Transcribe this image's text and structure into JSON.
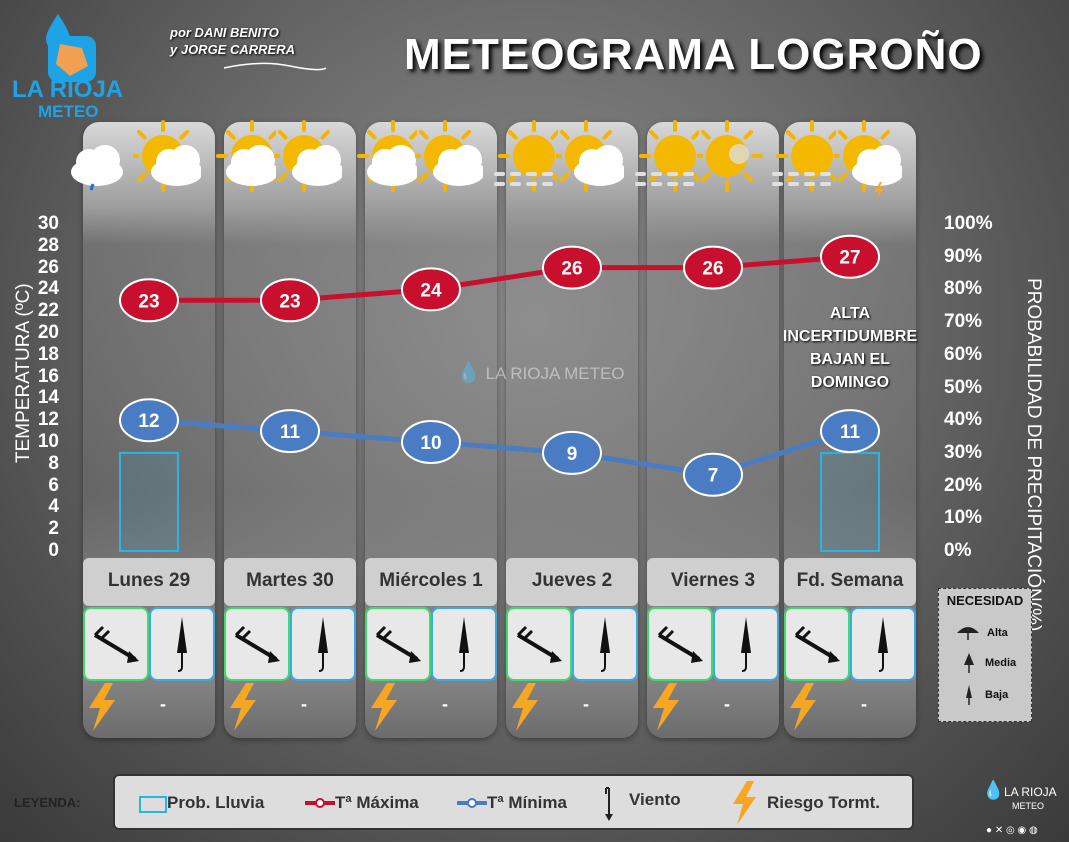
{
  "brand": {
    "name": "LA RIOJA",
    "sub": "METEO"
  },
  "credit": {
    "line1": "por DANI BENITO",
    "line2": "y JORGE CARRERA"
  },
  "title": "METEOGRAMA LOGROÑO",
  "watermark": "LA RIOJA METEO",
  "note": [
    "ALTA",
    "INCERTIDUMBRE",
    "BAJAN EL",
    "DOMINGO"
  ],
  "colors": {
    "tmax": "#c8102e",
    "tmin": "#4a7cc3",
    "rain": "#2ab4e6",
    "storm": "#f5a623",
    "wind_box": "#3ddc6a",
    "umbrella_box": "#3aa9e8"
  },
  "chart_data": {
    "type": "line",
    "categories": [
      "Lunes 29",
      "Martes 30",
      "Miércoles 1",
      "Jueves 2",
      "Viernes 3",
      "Fd. Semana"
    ],
    "series": [
      {
        "name": "Tª Máxima",
        "values": [
          23,
          23,
          24,
          26,
          26,
          27
        ]
      },
      {
        "name": "Tª Mínima",
        "values": [
          12,
          11,
          10,
          9,
          7,
          11
        ]
      },
      {
        "name": "Prob. Lluvia",
        "type": "bar",
        "values": [
          30,
          0,
          0,
          0,
          0,
          30
        ]
      }
    ],
    "ylabel": "TEMPERATURA (ºC)",
    "ylim": [
      0,
      30
    ],
    "yticks": [
      0,
      2,
      4,
      6,
      8,
      10,
      12,
      14,
      16,
      18,
      20,
      22,
      24,
      26,
      28,
      30
    ],
    "y2label": "PROBABILIDAD DE PRECIPITACIÓN(%)",
    "y2lim": [
      0,
      100
    ],
    "y2ticks": [
      "0%",
      "10%",
      "20%",
      "30%",
      "40%",
      "50%",
      "60%",
      "70%",
      "80%",
      "90%",
      "100%"
    ],
    "grid": false,
    "legend": "bottom"
  },
  "days": [
    {
      "label": "Lunes 29",
      "weather": [
        "cloud-rain-icon",
        "sun-cloud-icon"
      ],
      "wind_icon": "wind-arrow-icon",
      "umbrella": "Baja",
      "storm": "-"
    },
    {
      "label": "Martes 30",
      "weather": [
        "sun-cloud-icon",
        "sun-cloud-icon"
      ],
      "wind_icon": "wind-arrow-icon",
      "umbrella": "Baja",
      "storm": "-"
    },
    {
      "label": "Miércoles 1",
      "weather": [
        "sun-cloud-icon",
        "sun-cloud-icon"
      ],
      "wind_icon": "wind-arrow-icon",
      "umbrella": "Baja",
      "storm": "-"
    },
    {
      "label": "Jueves 2",
      "weather": [
        "fog-sun-icon",
        "sun-cloud-icon"
      ],
      "wind_icon": "wind-arrow-icon",
      "umbrella": "Baja",
      "storm": "-"
    },
    {
      "label": "Viernes 3",
      "weather": [
        "fog-sun-icon",
        "sun-haze-icon"
      ],
      "wind_icon": "wind-arrow-icon",
      "umbrella": "Baja",
      "storm": "-"
    },
    {
      "label": "Fd. Semana",
      "weather": [
        "fog-sun-icon",
        "sun-storm-icon"
      ],
      "wind_icon": "wind-arrow-icon",
      "umbrella": "Baja",
      "storm": "-"
    }
  ],
  "necesidad": {
    "title": "NECESIDAD",
    "items": [
      "Alta",
      "Media",
      "Baja"
    ]
  },
  "legend": {
    "title": "LEYENDA:",
    "rain": "Prob. Lluvia",
    "tmax": "Tª Máxima",
    "tmin": "Tª Mínima",
    "wind": "Viento",
    "storm": "Riesgo Tormt."
  },
  "footer_brand": {
    "name": "LA RIOJA",
    "sub": "METEO"
  }
}
